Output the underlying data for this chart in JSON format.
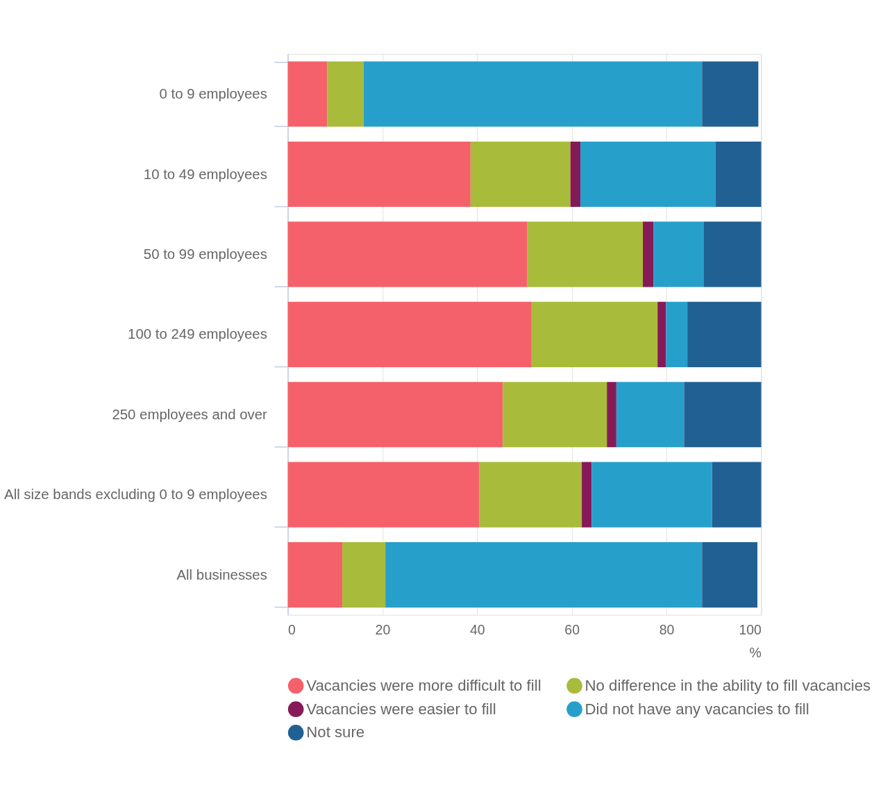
{
  "chart_data": {
    "type": "bar",
    "orientation": "horizontal",
    "stacked": true,
    "categories": [
      "0 to 9 employees",
      "10 to 49 employees",
      "50 to 99 employees",
      "100 to 249 employees",
      "250 employees and over",
      "All size bands excluding 0 to 9 employees",
      "All businesses"
    ],
    "series": [
      {
        "name": "Vacancies were more difficult to fill",
        "color": "#f5616a",
        "values": [
          8.3,
          38.6,
          50.6,
          51.5,
          45.4,
          40.4,
          11.5
        ]
      },
      {
        "name": "No difference in the ability to fill vacancies",
        "color": "#a8bb3a",
        "values": [
          7.7,
          21.1,
          24.4,
          26.6,
          22.0,
          21.7,
          9.1
        ]
      },
      {
        "name": "Vacancies were easier to fill",
        "color": "#861a58",
        "values": [
          0,
          2.1,
          2.2,
          1.8,
          2.0,
          2.1,
          0
        ]
      },
      {
        "name": "Did not have any vacancies to fill",
        "color": "#279fcb",
        "values": [
          71.5,
          28.6,
          10.7,
          4.5,
          14.3,
          25.4,
          66.9
        ]
      },
      {
        "name": "Not sure",
        "color": "#216092",
        "values": [
          11.9,
          9.6,
          12.1,
          15.6,
          16.3,
          10.4,
          11.7
        ]
      }
    ],
    "xlim": [
      0,
      100
    ],
    "xticks": [
      0,
      20,
      40,
      60,
      80,
      100
    ],
    "xlabel": "%",
    "grid": "x",
    "legend": "bottom"
  }
}
